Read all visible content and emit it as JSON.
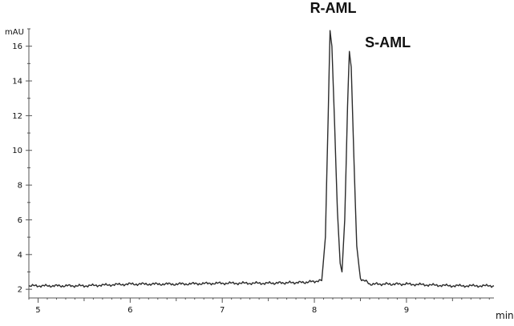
{
  "chart_data": {
    "type": "line",
    "title": "",
    "xlabel": "min",
    "ylabel": "mAU",
    "xlim": [
      4.9,
      9.95
    ],
    "ylim": [
      1.5,
      17.0
    ],
    "x_ticks": [
      5,
      6,
      7,
      8,
      9
    ],
    "y_ticks": [
      2,
      4,
      6,
      8,
      10,
      12,
      14,
      16
    ],
    "grid": false,
    "baseline": 2.3,
    "series": [
      {
        "x": [
          4.9,
          5.5,
          6.0,
          6.5,
          7.0,
          7.5,
          7.9,
          8.08,
          8.12,
          8.15,
          8.17,
          8.19,
          8.22,
          8.25,
          8.28,
          8.3,
          8.33,
          8.36,
          8.38,
          8.4,
          8.43,
          8.46,
          8.5,
          8.55,
          8.6,
          9.0,
          9.5,
          9.95
        ],
        "y": [
          2.2,
          2.2,
          2.3,
          2.3,
          2.35,
          2.35,
          2.4,
          2.5,
          5.0,
          12.0,
          16.9,
          16.0,
          11.5,
          6.5,
          3.5,
          3.0,
          6.0,
          12.5,
          15.7,
          14.8,
          9.5,
          4.5,
          2.6,
          2.5,
          2.3,
          2.3,
          2.2,
          2.2
        ]
      }
    ],
    "annotations": [
      {
        "text": "R-AML",
        "x": 8.17,
        "y": 16.9
      },
      {
        "text": "S-AML",
        "x": 8.38,
        "y": 15.7
      }
    ]
  }
}
